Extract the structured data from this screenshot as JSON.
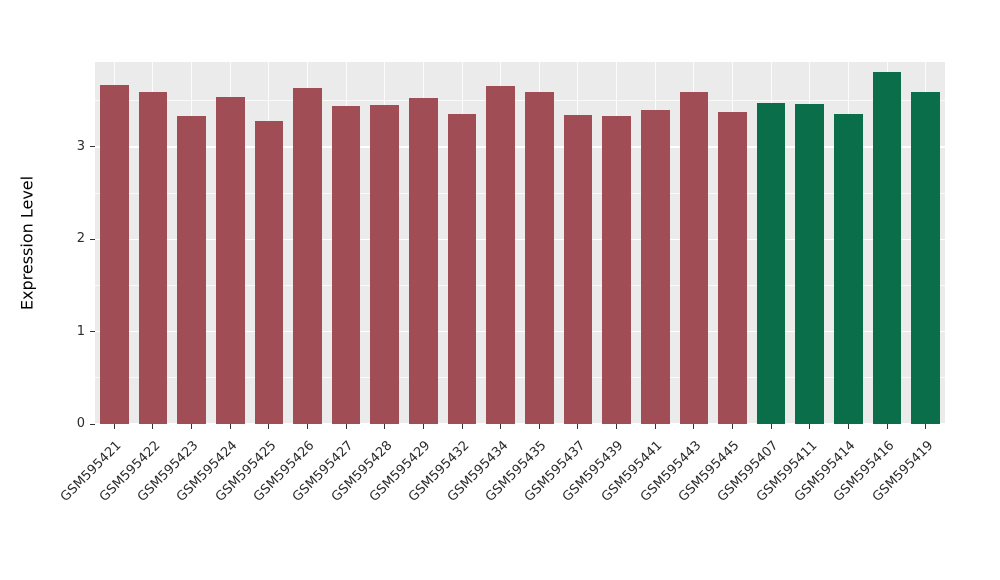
{
  "chart_data": {
    "type": "bar",
    "title": "",
    "xlabel": "",
    "ylabel": "Expression Level",
    "ylim": [
      0,
      3.92
    ],
    "yticks": [
      0,
      1,
      2,
      3
    ],
    "minor_yticks": [
      0.5,
      1.5,
      2.5,
      3.5
    ],
    "grid": "on",
    "legend_position": "none",
    "plot_background": "#EBEBEB",
    "grid_color": "#FFFFFF",
    "tick_color": "#333333",
    "categories": [
      "GSM595421",
      "GSM595422",
      "GSM595423",
      "GSM595424",
      "GSM595425",
      "GSM595426",
      "GSM595427",
      "GSM595428",
      "GSM595429",
      "GSM595432",
      "GSM595434",
      "GSM595435",
      "GSM595437",
      "GSM595439",
      "GSM595441",
      "GSM595443",
      "GSM595445",
      "GSM595407",
      "GSM595411",
      "GSM595414",
      "GSM595416",
      "GSM595419"
    ],
    "values": [
      3.67,
      3.6,
      3.33,
      3.54,
      3.28,
      3.64,
      3.44,
      3.45,
      3.53,
      3.36,
      3.66,
      3.59,
      3.35,
      3.33,
      3.4,
      3.59,
      3.38,
      3.48,
      3.46,
      3.36,
      3.81,
      3.6
    ],
    "bar_groups": [
      "red_group",
      "red_group",
      "red_group",
      "red_group",
      "red_group",
      "red_group",
      "red_group",
      "red_group",
      "red_group",
      "red_group",
      "red_group",
      "red_group",
      "red_group",
      "red_group",
      "red_group",
      "red_group",
      "red_group",
      "green_group",
      "green_group",
      "green_group",
      "green_group",
      "green_group"
    ],
    "bar_colors": {
      "red_group": "#A04D55",
      "green_group": "#0B6E4A"
    }
  }
}
